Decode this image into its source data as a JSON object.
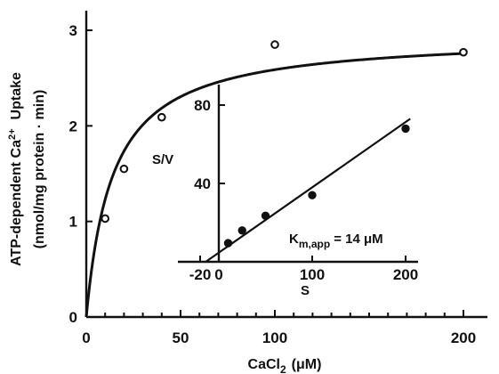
{
  "chart_data": [
    {
      "type": "scatter",
      "role": "main",
      "xlabel": "CaCl",
      "xlabel_subscript": "2",
      "xlabel_unit": "(μM)",
      "ylabel_line1": "ATP-dependent Ca",
      "ylabel_superscript": "2+",
      "ylabel_line1_end": "Uptake",
      "ylabel_line2": "(nmol/mg protein · min)",
      "xlim": [
        0,
        210
      ],
      "ylim": [
        0,
        3.1
      ],
      "x_ticks": [
        0,
        50,
        100,
        200
      ],
      "x_tick_labels": [
        "0",
        "50",
        "100",
        "200"
      ],
      "x_minor_ticks": [
        10,
        20,
        30,
        40,
        60,
        70,
        80,
        90,
        110,
        120,
        130,
        140,
        150,
        160,
        170,
        180,
        190
      ],
      "y_ticks": [
        0,
        1,
        2,
        3
      ],
      "y_tick_labels": [
        "0",
        "1",
        "2",
        "3"
      ],
      "series": [
        {
          "marker": "open-circle",
          "points": [
            {
              "x": 10,
              "y": 1.03
            },
            {
              "x": 20,
              "y": 1.55
            },
            {
              "x": 40,
              "y": 2.09
            },
            {
              "x": 100,
              "y": 2.85
            },
            {
              "x": 200,
              "y": 2.77
            }
          ]
        }
      ],
      "fit": {
        "model": "michaelis-menten",
        "vmax": 2.95,
        "km": 14
      }
    },
    {
      "type": "scatter",
      "role": "inset",
      "xlabel": "S",
      "ylabel": "S/V",
      "xlim": [
        -22,
        210
      ],
      "ylim": [
        -3,
        92
      ],
      "x_ticks": [
        -20,
        0,
        100,
        200
      ],
      "x_tick_labels": [
        "-20",
        "0",
        "100",
        "200"
      ],
      "y_ticks": [
        40,
        80
      ],
      "y_tick_labels": [
        "40",
        "80"
      ],
      "annotation_main": "K",
      "annotation_sub": "m,app",
      "annotation_value": "= 14 μM",
      "series": [
        {
          "marker": "filled-circle",
          "points": [
            {
              "x": 10,
              "y": 9.5
            },
            {
              "x": 25,
              "y": 16
            },
            {
              "x": 50,
              "y": 23.5
            },
            {
              "x": 100,
              "y": 34
            },
            {
              "x": 200,
              "y": 68
            }
          ]
        }
      ],
      "fit_line": {
        "slope": 0.3333,
        "intercept": 4.67
      }
    }
  ]
}
